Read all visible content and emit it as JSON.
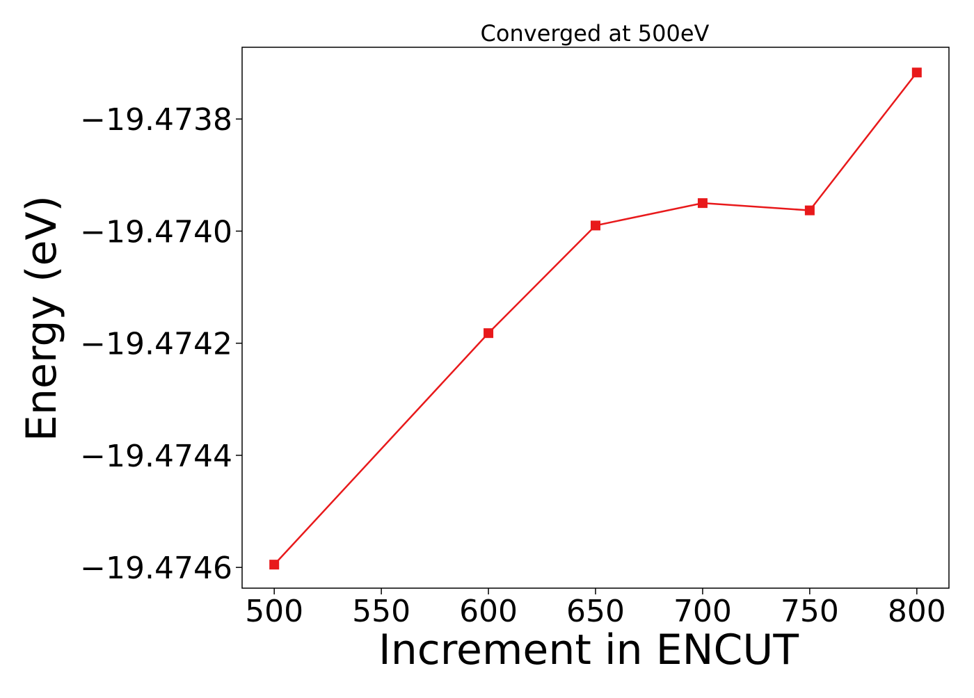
{
  "chart_data": {
    "type": "line",
    "title": "Converged at 500eV",
    "xlabel": "Increment in ENCUT",
    "ylabel": "Energy (eV)",
    "x": [
      500,
      600,
      650,
      700,
      750,
      800
    ],
    "series": [
      {
        "values": [
          -19.474595,
          -19.474182,
          -19.47399,
          -19.47395,
          -19.473963,
          -19.473717
        ],
        "color": "#e8191b",
        "marker": "square"
      }
    ],
    "xlim": [
      485,
      815
    ],
    "ylim": [
      -19.474637,
      -19.473672
    ],
    "xticks": [
      500,
      550,
      600,
      650,
      700,
      750,
      800
    ],
    "xtick_labels": [
      "500",
      "550",
      "600",
      "650",
      "700",
      "750",
      "800"
    ],
    "yticks": [
      -19.4746,
      -19.4744,
      -19.4742,
      -19.474,
      -19.4738
    ],
    "ytick_labels": [
      "−19.4746",
      "−19.4744",
      "−19.4742",
      "−19.4740",
      "−19.4738"
    ],
    "grid": false,
    "legend": "none"
  }
}
